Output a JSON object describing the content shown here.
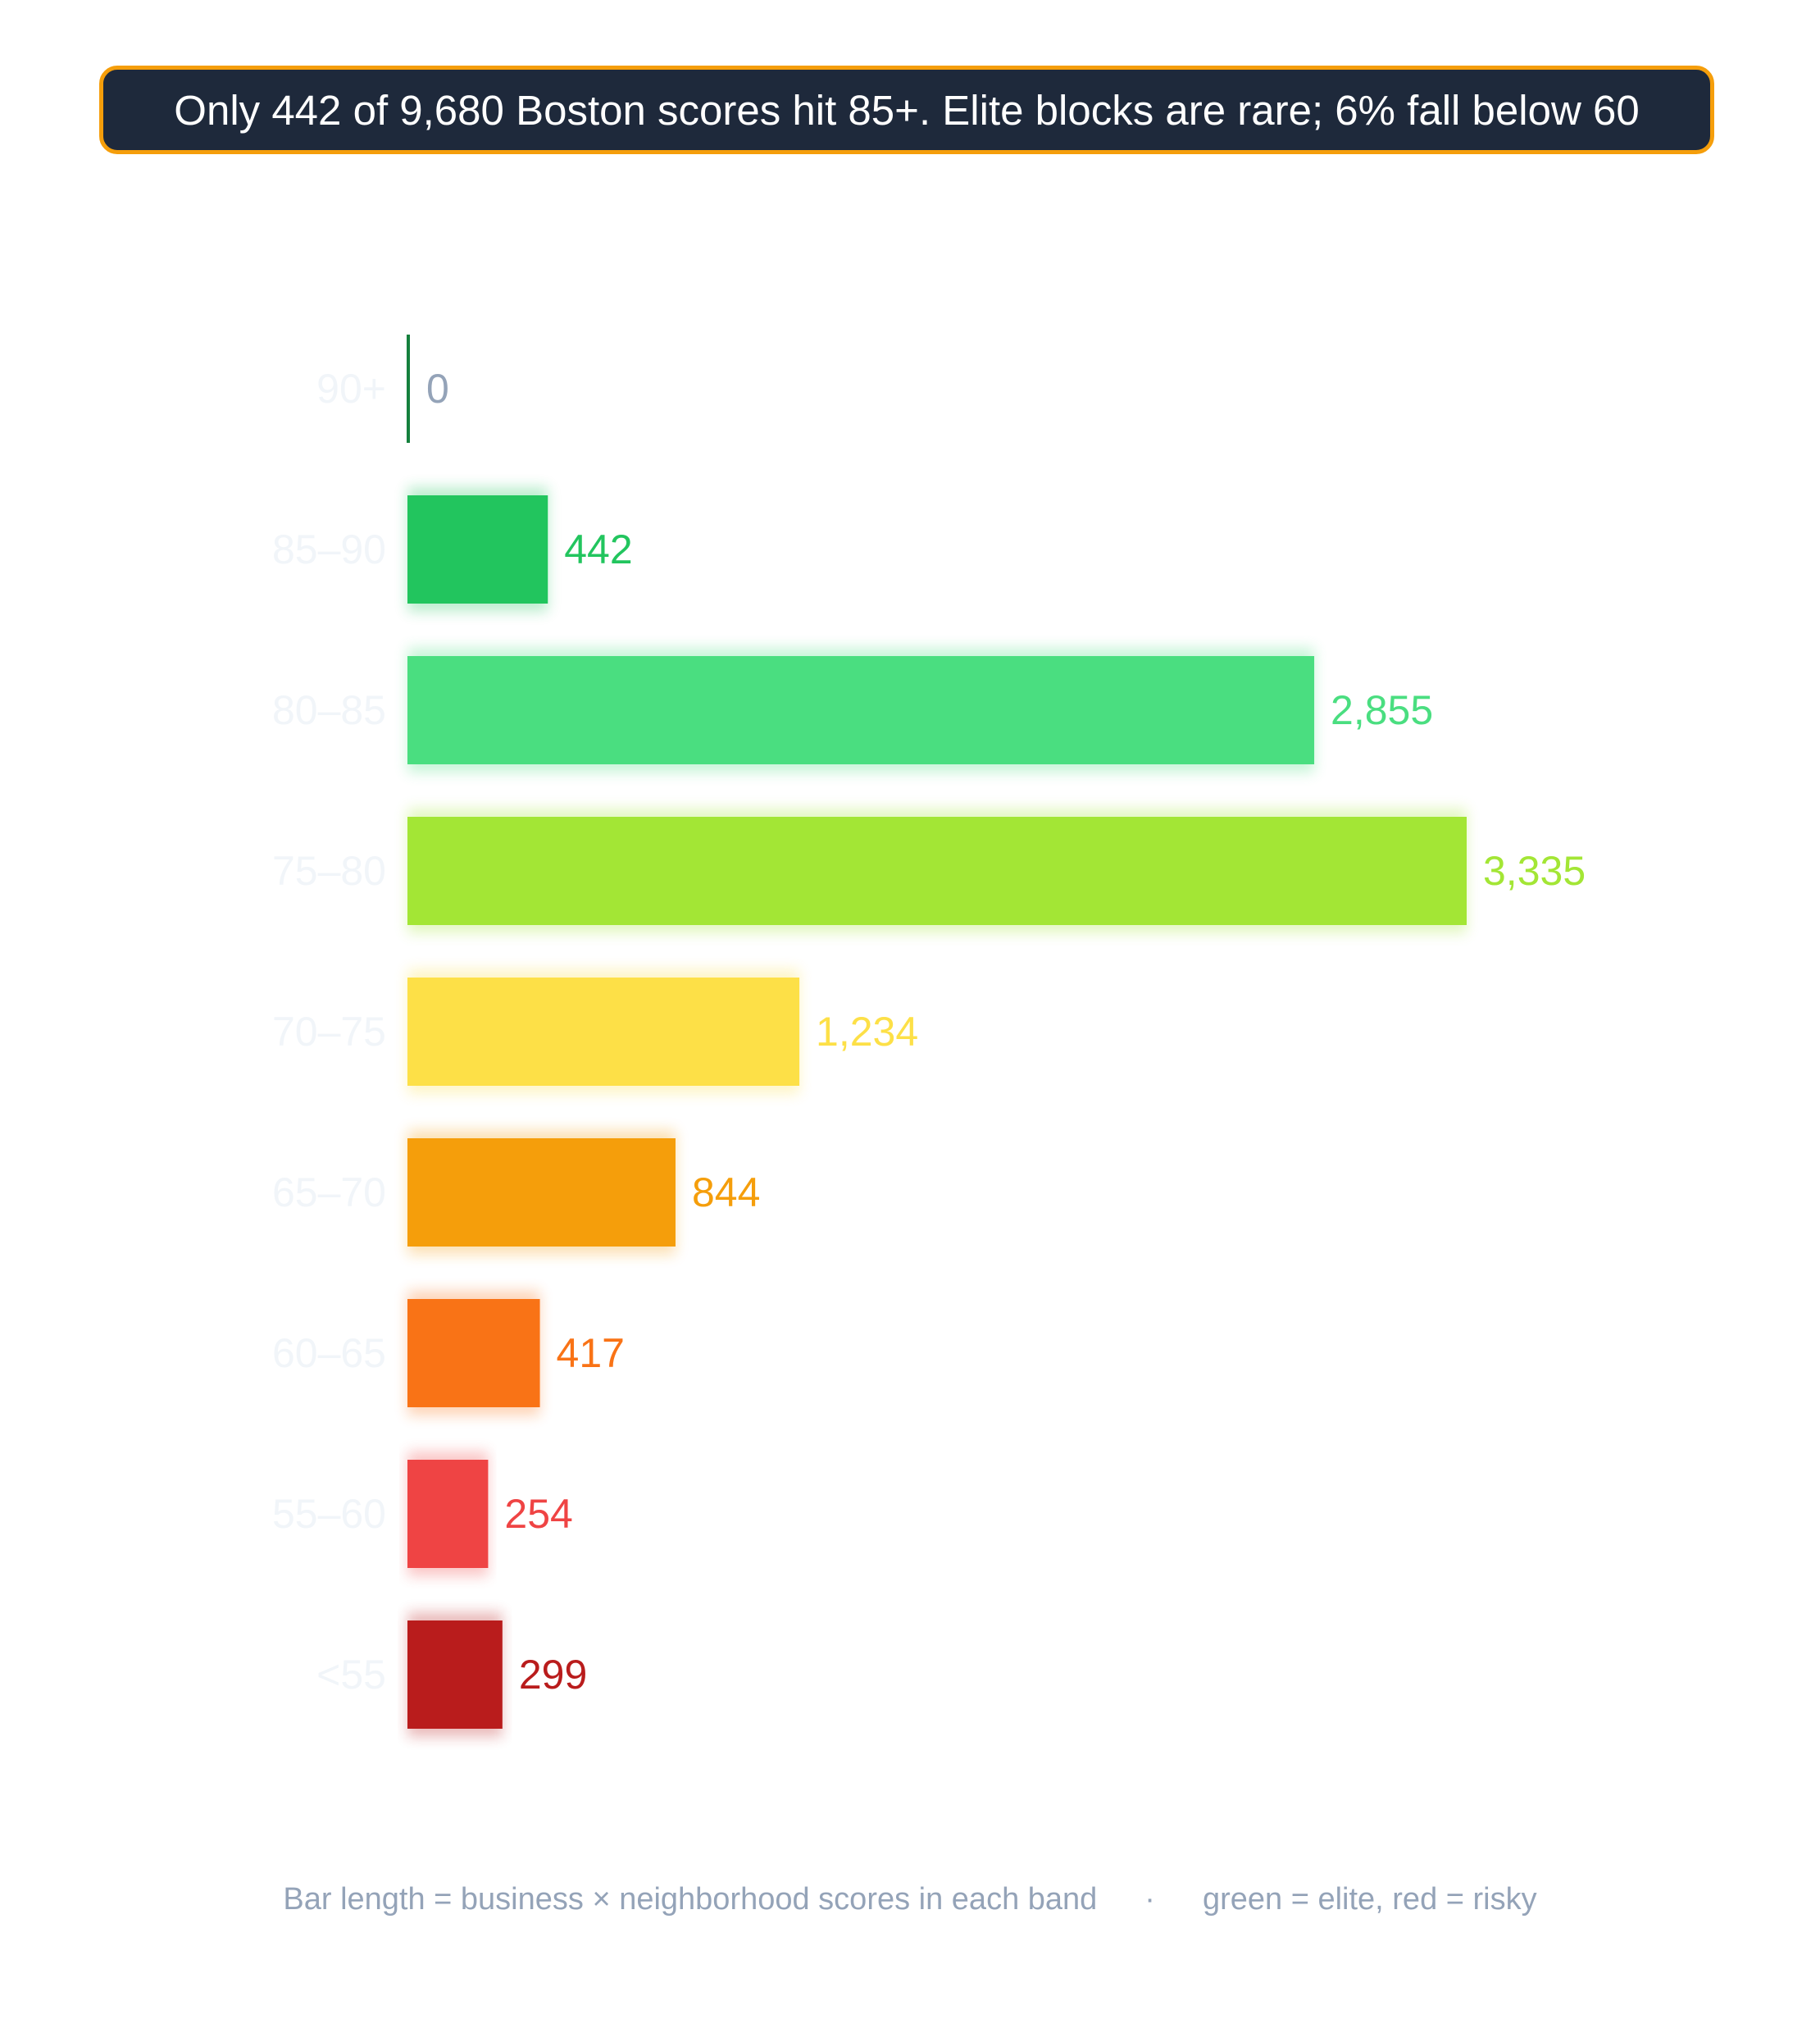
{
  "title": "Only 442 of 9,680 Boston scores hit 85+. Elite blocks are rare; 6% fall below 60",
  "footer": {
    "left": "Bar length = business × neighborhood scores in each band",
    "separator": "·",
    "right": "green = elite, red = risky"
  },
  "colors": {
    "title_background": "#1e293b",
    "title_border": "#f59e0b",
    "title_text": "#ffffff",
    "category_label": "#f1f5f9",
    "zero_label": "#94a3b8",
    "footer_text": "#94a3b8"
  },
  "chart_data": {
    "type": "bar",
    "orientation": "horizontal",
    "categories": [
      "90+",
      "85–90",
      "80–85",
      "75–80",
      "70–75",
      "65–70",
      "60–65",
      "55–60",
      "<55"
    ],
    "values": [
      0,
      442,
      2855,
      3335,
      1234,
      844,
      417,
      254,
      299
    ],
    "value_labels": [
      "0",
      "442",
      "2,855",
      "3,335",
      "1,234",
      "844",
      "417",
      "254",
      "299"
    ],
    "bar_colors": [
      "#15803d",
      "#22c55e",
      "#4ade80",
      "#a3e635",
      "#fde047",
      "#f59e0b",
      "#f97316",
      "#ef4444",
      "#b91c1c"
    ],
    "xlim": [
      0,
      3335
    ],
    "grid": false,
    "legend": "none"
  }
}
